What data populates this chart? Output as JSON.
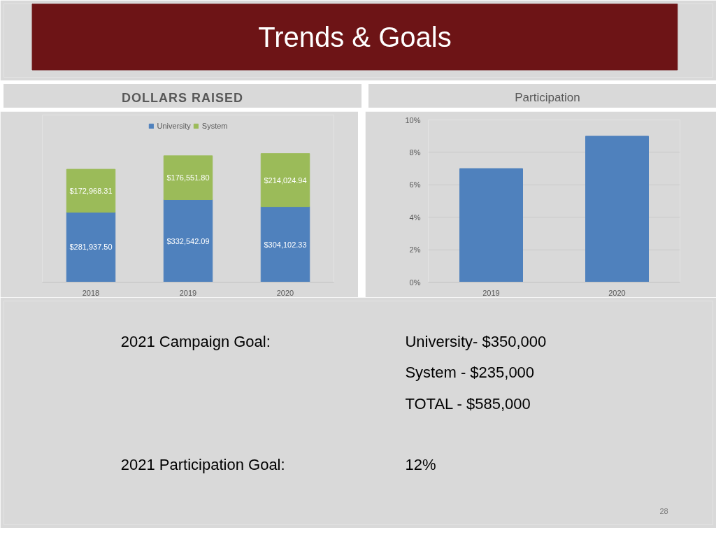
{
  "chart_data": [
    {
      "type": "other",
      "title": "Trends & Goals"
    },
    {
      "type": "bar",
      "title": "DOLLARS RAISED",
      "categories": [
        "2018",
        "2019",
        "2020"
      ],
      "stacked": true,
      "legend": "top",
      "series": [
        {
          "name": "University",
          "color": "#4f81bd",
          "values": [
            281937.5,
            332542.09,
            304102.33
          ],
          "value_labels": [
            "$281,937.50",
            "$332,542.09",
            "$304,102.33"
          ]
        },
        {
          "name": "System",
          "color": "#9bbb59",
          "values": [
            172968.31,
            176551.8,
            214024.94
          ],
          "value_labels": [
            "$172,968.31",
            "$176,551.80",
            "$214,024.94"
          ]
        }
      ]
    },
    {
      "type": "bar",
      "title": "Participation",
      "categories": [
        "2019",
        "2020"
      ],
      "values": [
        7,
        9
      ],
      "color": "#4f81bd",
      "ylim": [
        0,
        10
      ],
      "yticks": [
        {
          "value": 0,
          "label": "0%"
        },
        {
          "value": 2,
          "label": "2%"
        },
        {
          "value": 4,
          "label": "4%"
        },
        {
          "value": 6,
          "label": "6%"
        },
        {
          "value": 8,
          "label": "8%"
        },
        {
          "value": 10,
          "label": "10%"
        }
      ],
      "grid": "y"
    },
    {
      "type": "other",
      "annotations": [
        "2021 Campaign Goal:",
        "University- $350,000",
        "System - $235,000",
        "TOTAL - $585,000",
        "2021 Participation Goal:",
        "12%",
        "28"
      ]
    }
  ]
}
